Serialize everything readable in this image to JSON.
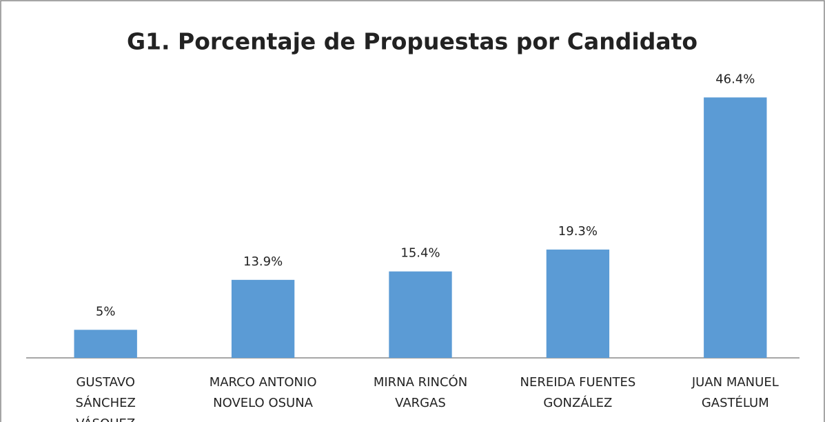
{
  "chart_data": {
    "type": "bar",
    "title": "G1. Porcentaje de Propuestas por Candidato",
    "categories": [
      "GUSTAVO SÁNCHEZ VÁSQUEZ",
      "MARCO ANTONIO NOVELO OSUNA",
      "MIRNA RINCÓN VARGAS",
      "NEREIDA FUENTES GONZÁLEZ",
      "JUAN MANUEL GASTÉLUM"
    ],
    "values": [
      5,
      13.9,
      15.4,
      19.3,
      46.4
    ],
    "value_labels": [
      "5%",
      "13.9%",
      "15.4%",
      "19.3%",
      "46.4%"
    ],
    "color": "#5b9bd5",
    "ylim": [
      0,
      50
    ]
  }
}
